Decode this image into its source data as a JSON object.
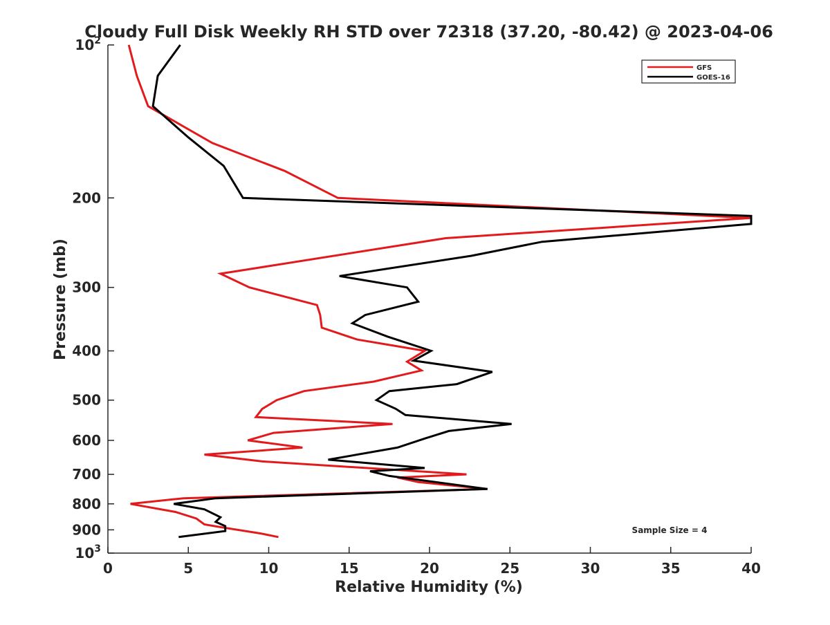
{
  "chart_data": {
    "type": "line",
    "title": "Cloudy Full Disk Weekly RH STD over 72318 (37.20, -80.42) @ 2023-04-06",
    "xlabel": "Relative Humidity (%)",
    "ylabel": "Pressure (mb)",
    "xlim": [
      0,
      40
    ],
    "ylim": [
      100,
      1000
    ],
    "yscale": "log",
    "y_reversed": true,
    "grid": false,
    "legend_position": "top-right",
    "x_ticks": [
      "0",
      "5",
      "10",
      "15",
      "20",
      "25",
      "30",
      "35",
      "40"
    ],
    "x_tick_values": [
      0,
      5,
      10,
      15,
      20,
      25,
      30,
      35,
      40
    ],
    "y_ticks": [
      {
        "value": 100,
        "base": "10",
        "exp": "2"
      },
      {
        "value": 200,
        "label": "200"
      },
      {
        "value": 300,
        "label": "300"
      },
      {
        "value": 400,
        "label": "400"
      },
      {
        "value": 500,
        "label": "500"
      },
      {
        "value": 600,
        "label": "600"
      },
      {
        "value": 700,
        "label": "700"
      },
      {
        "value": 800,
        "label": "800"
      },
      {
        "value": 900,
        "label": "900"
      },
      {
        "value": 1000,
        "base": "10",
        "exp": "3"
      }
    ],
    "annotation": "Sample Size = 4",
    "series": [
      {
        "name": "GFS",
        "color": "#e31a1c",
        "points": [
          [
            1.3,
            100
          ],
          [
            1.8,
            115
          ],
          [
            2.5,
            132
          ],
          [
            6.5,
            156
          ],
          [
            11,
            177
          ],
          [
            14.3,
            200
          ],
          [
            40,
            219
          ],
          [
            21,
            240
          ],
          [
            7,
            282
          ],
          [
            8.8,
            300
          ],
          [
            13,
            325
          ],
          [
            13.2,
            340
          ],
          [
            13.3,
            360
          ],
          [
            15.5,
            380
          ],
          [
            19.7,
            400
          ],
          [
            18.6,
            420
          ],
          [
            19.5,
            437
          ],
          [
            16.5,
            460
          ],
          [
            12.2,
            480
          ],
          [
            10.5,
            500
          ],
          [
            9.6,
            520
          ],
          [
            9.2,
            540
          ],
          [
            17.7,
            557
          ],
          [
            10.3,
            580
          ],
          [
            8.7,
            600
          ],
          [
            12.1,
            620
          ],
          [
            6,
            640
          ],
          [
            9.6,
            660
          ],
          [
            22.3,
            700
          ],
          [
            18,
            710
          ],
          [
            19.3,
            725
          ],
          [
            23.6,
            748
          ],
          [
            4.7,
            780
          ],
          [
            1.4,
            800
          ],
          [
            4.2,
            830
          ],
          [
            5.5,
            855
          ],
          [
            6,
            878
          ],
          [
            7.1,
            890
          ],
          [
            9.5,
            915
          ],
          [
            10.6,
            930
          ]
        ]
      },
      {
        "name": "GOES-16",
        "color": "#000000",
        "points": [
          [
            4.5,
            100
          ],
          [
            3.1,
            115
          ],
          [
            2.8,
            132
          ],
          [
            5,
            152
          ],
          [
            7.2,
            173
          ],
          [
            8.4,
            200
          ],
          [
            40,
            217
          ],
          [
            40,
            225
          ],
          [
            27,
            244
          ],
          [
            22.6,
            260
          ],
          [
            14.4,
            285
          ],
          [
            18.6,
            300
          ],
          [
            19.3,
            320
          ],
          [
            16,
            340
          ],
          [
            15.2,
            353
          ],
          [
            17.4,
            375
          ],
          [
            20.1,
            400
          ],
          [
            19,
            418
          ],
          [
            23.9,
            440
          ],
          [
            21.7,
            465
          ],
          [
            17.5,
            480
          ],
          [
            16.7,
            500
          ],
          [
            17.9,
            520
          ],
          [
            18.5,
            535
          ],
          [
            25.1,
            557
          ],
          [
            21.2,
            575
          ],
          [
            19.7,
            595
          ],
          [
            18,
            620
          ],
          [
            13.7,
            655
          ],
          [
            19.7,
            680
          ],
          [
            16.3,
            690
          ],
          [
            17.5,
            705
          ],
          [
            23.6,
            748
          ],
          [
            6.7,
            780
          ],
          [
            4.1,
            800
          ],
          [
            6,
            820
          ],
          [
            7,
            850
          ],
          [
            6.7,
            868
          ],
          [
            7.3,
            885
          ],
          [
            7.3,
            905
          ],
          [
            4.4,
            930
          ]
        ]
      }
    ]
  }
}
